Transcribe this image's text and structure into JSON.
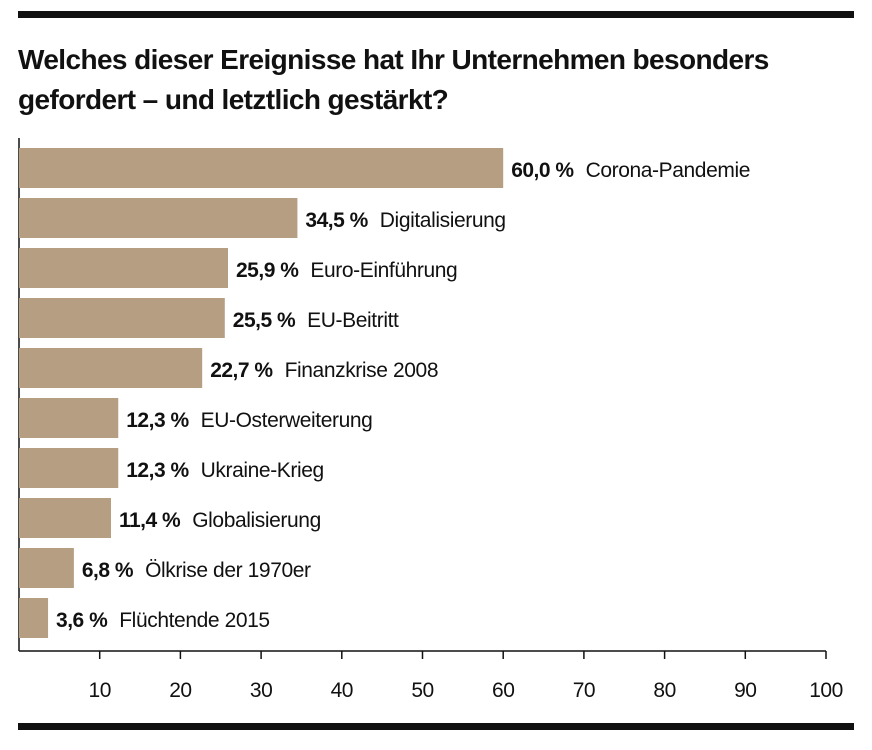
{
  "title": {
    "line1": "Welches dieser Ereignisse hat Ihr Unternehmen besonders",
    "line2": "gefordert – und letztlich gestärkt?"
  },
  "chart_data": {
    "type": "bar",
    "orientation": "horizontal",
    "categories": [
      "Corona-Pandemie",
      "Digitalisierung",
      "Euro-Einführung",
      "EU-Beitritt",
      "Finanzkrise 2008",
      "EU-Osterweiterung",
      "Ukraine-Krieg",
      "Globalisierung",
      "Ölkrise der 1970er",
      "Flüchtende 2015"
    ],
    "values": [
      60.0,
      34.5,
      25.9,
      25.5,
      22.7,
      12.3,
      12.3,
      11.4,
      6.8,
      3.6
    ],
    "value_labels": [
      "60,0 %",
      "34,5 %",
      "25,9 %",
      "25,5 %",
      "22,7 %",
      "12,3 %",
      "12,3 %",
      "11,4 %",
      "6,8 %",
      "3,6 %"
    ],
    "xlim": [
      0,
      100
    ],
    "xticks": [
      10,
      20,
      30,
      40,
      50,
      60,
      70,
      80,
      90,
      100
    ],
    "xlabel": "",
    "ylabel": "",
    "grid": false,
    "bar_color": "#b59e82"
  }
}
